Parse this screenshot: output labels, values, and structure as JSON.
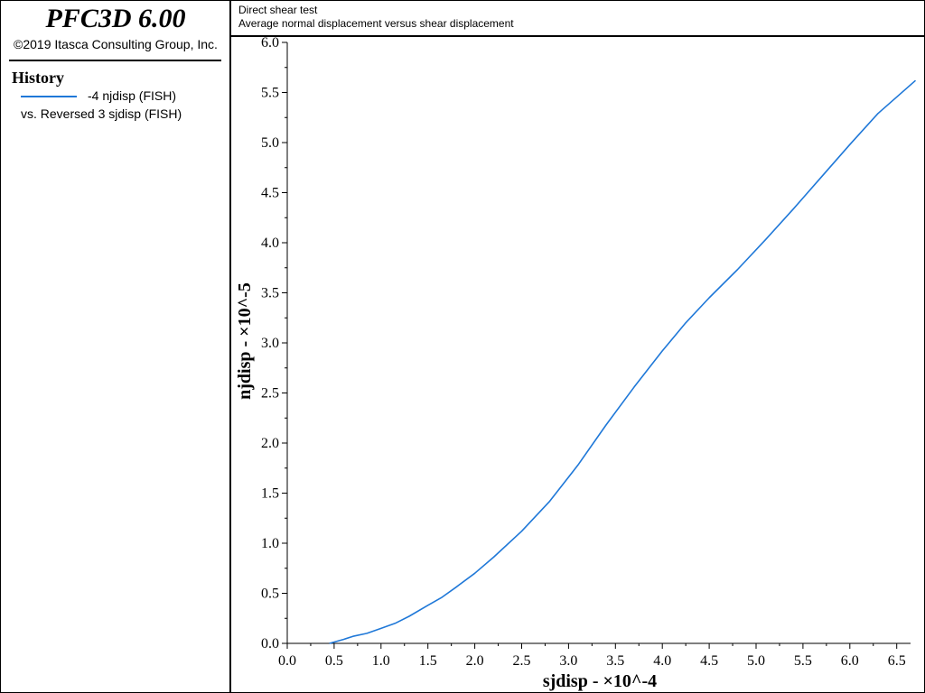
{
  "sidebar": {
    "app_title": "PFC3D 6.00",
    "copyright": "©2019 Itasca Consulting Group, Inc.",
    "history_heading": "History",
    "legend": {
      "line1": "-4 njdisp (FISH)",
      "line2": "vs. Reversed 3 sjdisp (FISH)"
    }
  },
  "header": {
    "title": "Direct shear test",
    "subtitle": "Average normal displacement versus shear displacement"
  },
  "colors": {
    "series": "#1f78d8",
    "axis": "#000000"
  },
  "chart_data": {
    "type": "line",
    "title": "Direct shear test",
    "subtitle": "Average normal displacement versus shear displacement",
    "xlabel": "sjdisp -  ×10^-4",
    "ylabel": "njdisp  -  ×10^-5",
    "xlim": [
      0.0,
      6.75
    ],
    "ylim": [
      0.0,
      6.0
    ],
    "x_ticks": [
      "0.0",
      "0.5",
      "1.0",
      "1.5",
      "2.0",
      "2.5",
      "3.0",
      "3.5",
      "4.0",
      "4.5",
      "5.0",
      "5.5",
      "6.0",
      "6.5"
    ],
    "y_ticks": [
      "0.0",
      "0.5",
      "1.0",
      "1.5",
      "2.0",
      "2.5",
      "3.0",
      "3.5",
      "4.0",
      "4.5",
      "5.0",
      "5.5",
      "6.0"
    ],
    "grid": false,
    "legend_position": "left-sidebar",
    "series": [
      {
        "name": "-4 njdisp (FISH) vs. Reversed 3 sjdisp (FISH)",
        "x": [
          0.45,
          0.6,
          0.7,
          0.85,
          1.0,
          1.15,
          1.3,
          1.5,
          1.65,
          1.8,
          2.0,
          2.2,
          2.5,
          2.8,
          3.1,
          3.4,
          3.7,
          4.0,
          4.25,
          4.5,
          4.8,
          5.1,
          5.4,
          5.7,
          6.0,
          6.3,
          6.7
        ],
        "y": [
          0.0,
          0.04,
          0.07,
          0.1,
          0.15,
          0.2,
          0.27,
          0.38,
          0.46,
          0.56,
          0.7,
          0.86,
          1.12,
          1.42,
          1.78,
          2.18,
          2.56,
          2.92,
          3.2,
          3.45,
          3.73,
          4.03,
          4.34,
          4.66,
          4.98,
          5.29,
          5.62
        ]
      }
    ]
  }
}
